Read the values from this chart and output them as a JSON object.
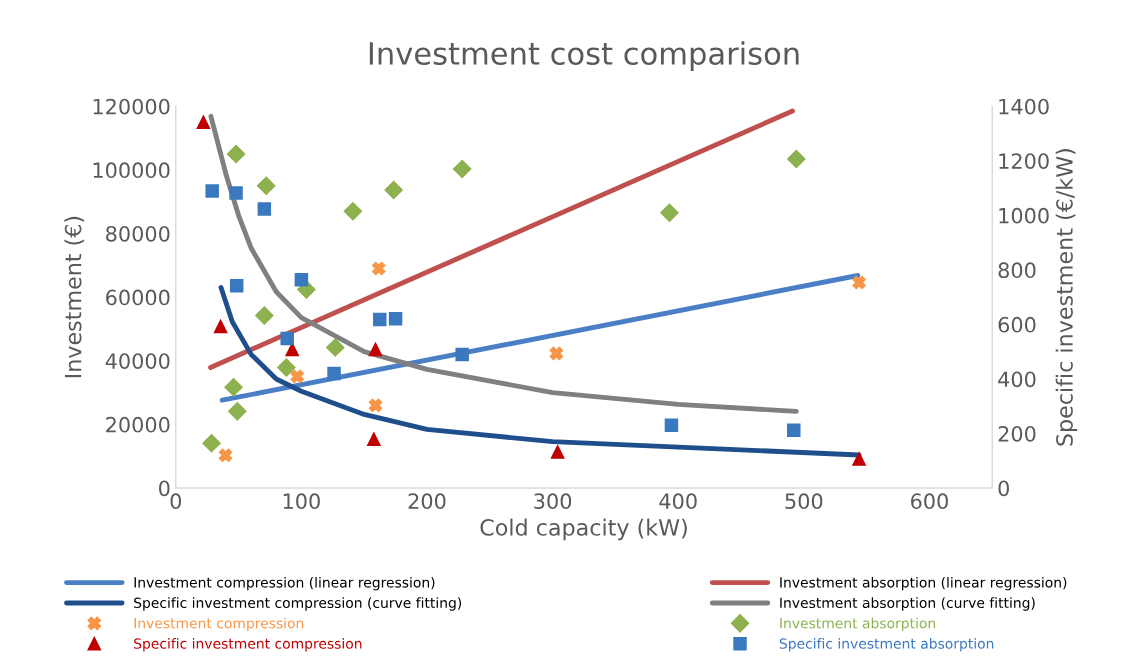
{
  "chart_data": {
    "type": "line",
    "title": "Investment cost comparison",
    "xlabel": "Cold capacity (kW)",
    "ylabel": "Investment (€)",
    "y2label": "Specific investment (€/kW)",
    "xlim": [
      0,
      650
    ],
    "xticks": [
      0,
      100,
      200,
      300,
      400,
      500,
      600
    ],
    "ylim": [
      0,
      120000
    ],
    "yticks": [
      0,
      20000,
      40000,
      60000,
      80000,
      100000,
      120000
    ],
    "y2lim": [
      0,
      1400
    ],
    "y2ticks": [
      0,
      200,
      400,
      600,
      800,
      1000,
      1200,
      1400
    ],
    "grid": false,
    "legend": "bottom",
    "series": [
      {
        "name": "Investment compression (linear regression)",
        "color": "#4a7fc6",
        "marker": "none",
        "x": [
          37,
          543
        ],
        "values": [
          27600,
          66800
        ]
      },
      {
        "name": "Specific investment compression (curve fitting)",
        "type": "line",
        "axis": "y2",
        "color": "#1f4e8c",
        "marker": "none",
        "x": [
          36,
          45,
          60,
          80,
          100,
          150,
          200,
          300,
          400,
          544
        ],
        "values": [
          735,
          610,
          490,
          400,
          355,
          270,
          215,
          170,
          150,
          121
        ]
      },
      {
        "name": "Investment compression",
        "type": "scatter",
        "color": "#f79646",
        "marker": "cross",
        "x": [
          39.6,
          96.7,
          159,
          161.6,
          303,
          544
        ],
        "values": [
          10300,
          35100,
          26000,
          69000,
          42300,
          64600
        ]
      },
      {
        "name": "Specific investment compression",
        "type": "scatter",
        "axis": "y2",
        "color": "#c00000",
        "marker": "triangle",
        "x": [
          22,
          35.7,
          92.7,
          159,
          157.7,
          304,
          544
        ],
        "values": [
          1341,
          592,
          508,
          508,
          179,
          132,
          106
        ]
      },
      {
        "name": "Investment absorption (linear regression)",
        "color": "#c0504d",
        "marker": "none",
        "x": [
          27.7,
          491
        ],
        "values": [
          37900,
          118500
        ]
      },
      {
        "name": "Investment absorption (curve fitting)",
        "type": "line",
        "axis": "y2",
        "color": "#808080",
        "marker": "none",
        "x": [
          28,
          40,
          50,
          60,
          80,
          100,
          150,
          200,
          300,
          400,
          494
        ],
        "values": [
          1363,
          1150,
          1000,
          880,
          720,
          625,
          500,
          435,
          350,
          307,
          281
        ]
      },
      {
        "name": "Investment absorption",
        "type": "scatter",
        "color": "#8db14e",
        "marker": "diamond",
        "x": [
          28.5,
          46,
          49,
          48,
          70.5,
          72,
          88,
          104,
          127,
          141,
          173.5,
          228,
          393,
          494
        ],
        "values": [
          14100,
          31700,
          24100,
          105000,
          54200,
          95000,
          37900,
          62400,
          44200,
          87000,
          93700,
          100300,
          86500,
          103400
        ]
      },
      {
        "name": "Specific investment absorption",
        "type": "scatter",
        "axis": "y2",
        "color": "#3a78c0",
        "marker": "square",
        "x": [
          29,
          48,
          48.5,
          70.5,
          88.7,
          100,
          126,
          162.4,
          175,
          228,
          394.6,
          492
        ],
        "values": [
          1089,
          1082,
          742,
          1023,
          548,
          764,
          420,
          618,
          621,
          490,
          230,
          212
        ]
      }
    ]
  }
}
